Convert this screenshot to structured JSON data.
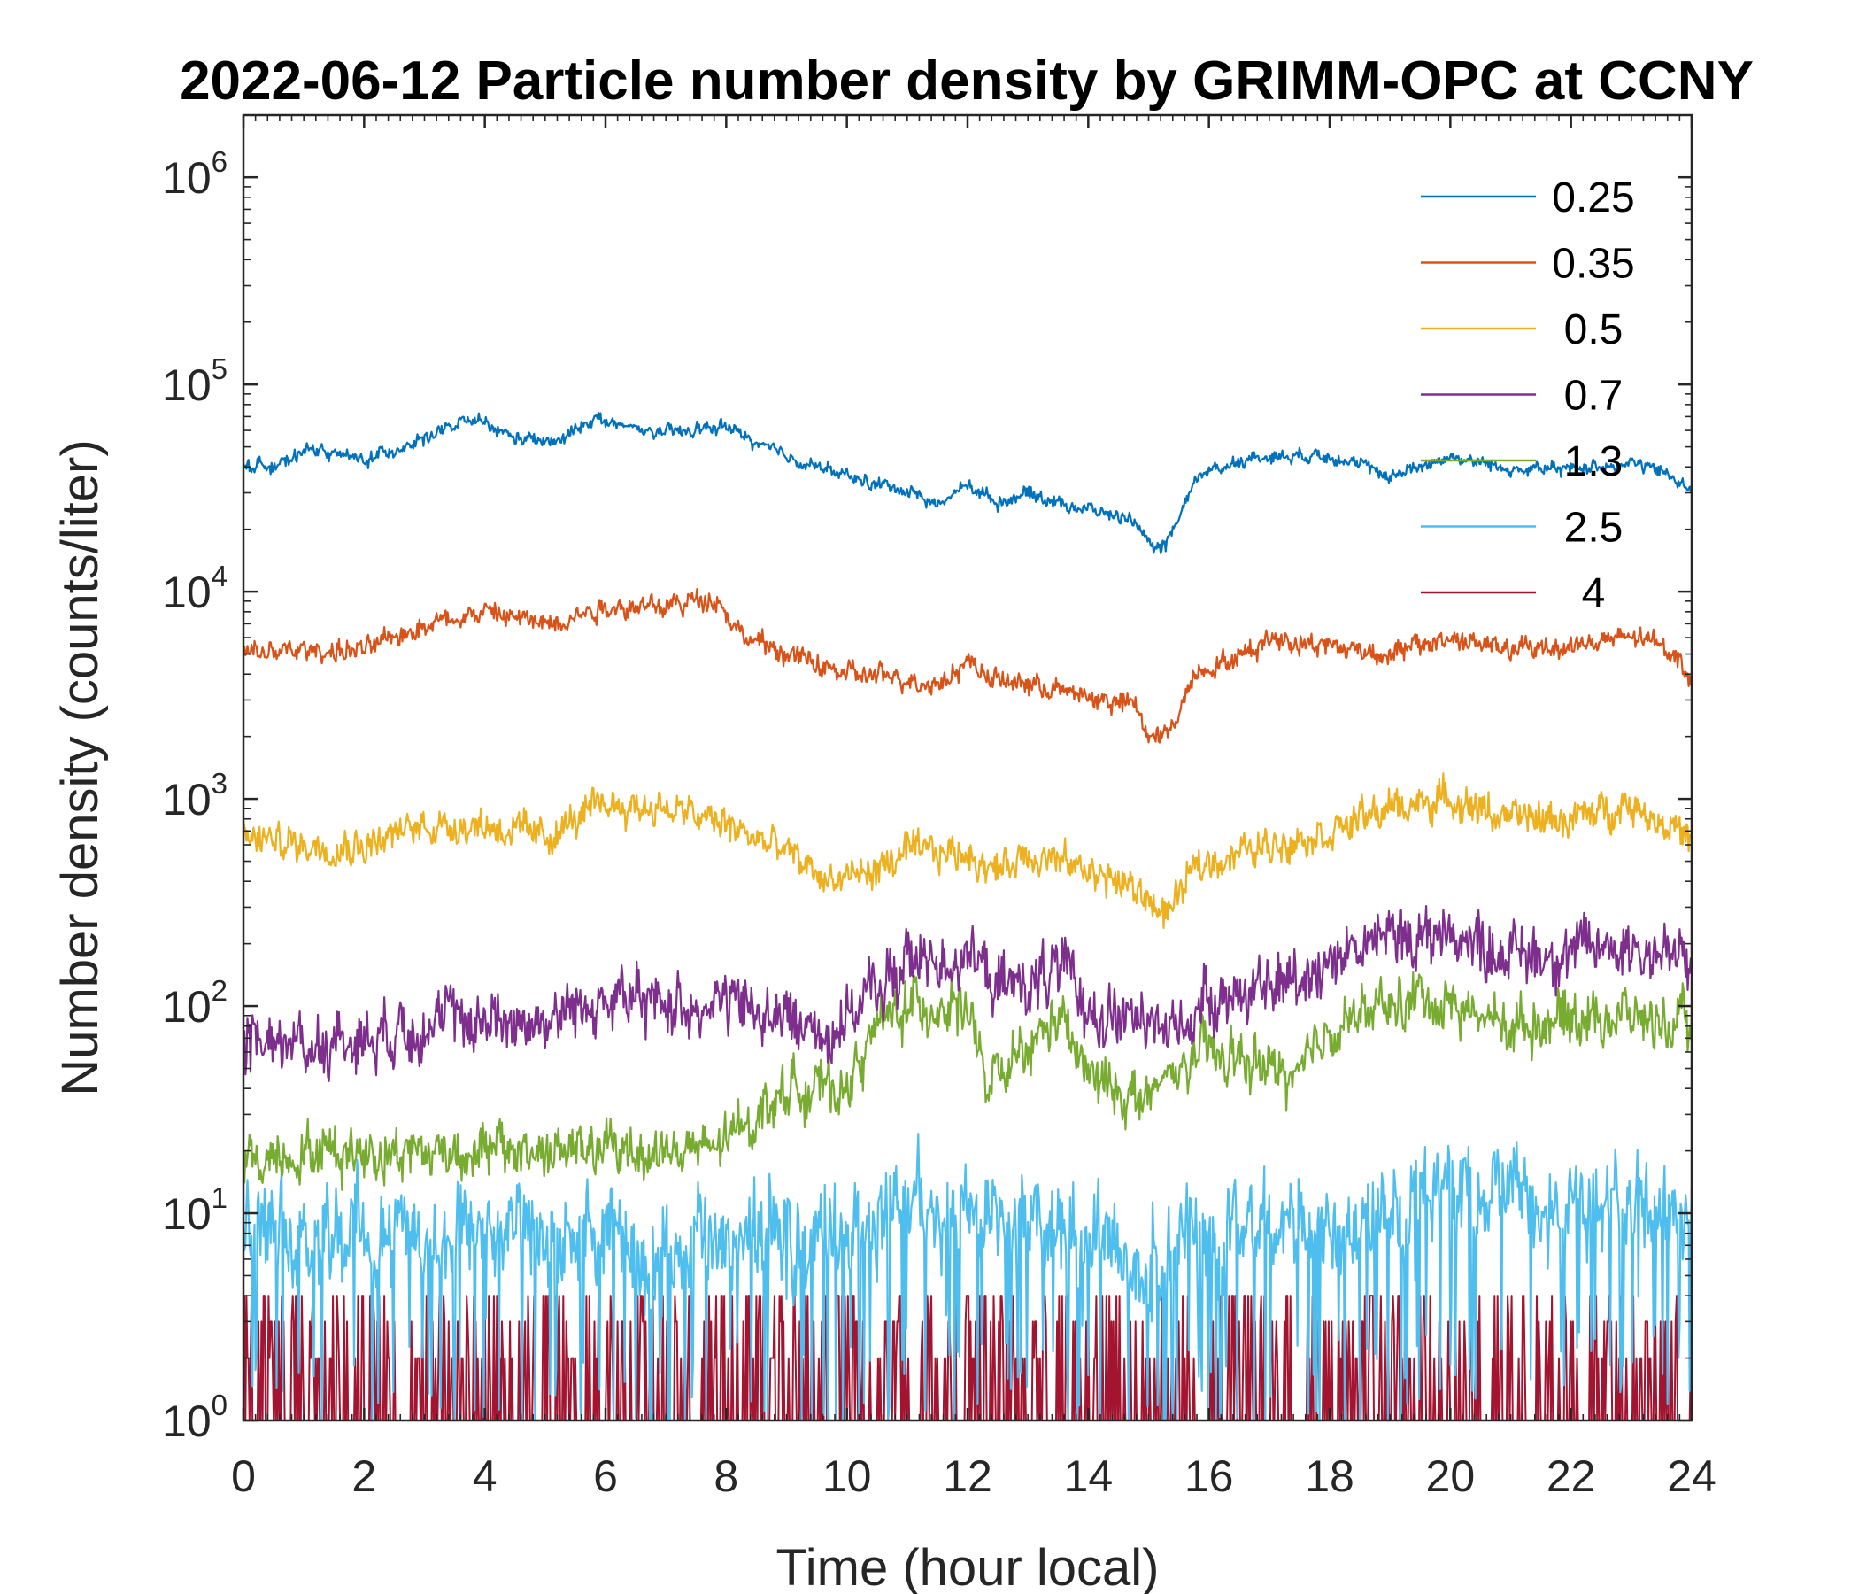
{
  "chart_data": {
    "type": "line",
    "title": "2022-06-12 Particle number density by GRIMM-OPC at CCNY",
    "xlabel": "Time (hour local)",
    "ylabel": "Number density (counts/liter)",
    "xlim": [
      0,
      24
    ],
    "ylim_log10": [
      0,
      6.3
    ],
    "xticks": [
      0,
      2,
      4,
      6,
      8,
      10,
      12,
      14,
      16,
      18,
      20,
      22,
      24
    ],
    "yticks": [
      {
        "base": "10",
        "exp": "0",
        "value": 1
      },
      {
        "base": "10",
        "exp": "1",
        "value": 10
      },
      {
        "base": "10",
        "exp": "2",
        "value": 100
      },
      {
        "base": "10",
        "exp": "3",
        "value": 1000
      },
      {
        "base": "10",
        "exp": "4",
        "value": 10000
      },
      {
        "base": "10",
        "exp": "5",
        "value": 100000
      },
      {
        "base": "10",
        "exp": "6",
        "value": 1000000
      }
    ],
    "legend_position": "top-right",
    "series": [
      {
        "name": "0.25",
        "color": "#0072BD",
        "x": [
          0,
          0.8,
          1,
          2,
          3,
          3.8,
          4.5,
          5.2,
          5.8,
          6.2,
          7,
          8,
          8.5,
          9,
          10,
          10.5,
          11,
          11.5,
          12,
          12.5,
          13,
          13.5,
          14,
          14.8,
          15,
          15.3,
          15.8,
          16.5,
          17,
          18,
          19,
          20,
          21,
          22,
          23,
          23.6,
          24
        ],
        "values": [
          40000,
          42000,
          50000,
          43000,
          55000,
          68000,
          55000,
          52000,
          70000,
          63000,
          58000,
          63000,
          52000,
          45000,
          36000,
          33000,
          31000,
          26000,
          33000,
          27000,
          30000,
          27000,
          25000,
          22000,
          16000,
          17000,
          36000,
          43000,
          45000,
          46000,
          36000,
          45000,
          39000,
          39000,
          42000,
          37000,
          31000
        ],
        "noise": 0.03
      },
      {
        "name": "0.35",
        "color": "#D95319",
        "x": [
          0,
          1,
          2,
          3,
          4,
          5,
          6,
          7,
          7.8,
          8.3,
          9,
          10,
          11,
          11.5,
          12,
          12.5,
          13,
          14,
          14.8,
          15,
          15.3,
          15.8,
          16.5,
          17,
          18,
          19,
          20,
          21,
          22,
          23,
          23.6,
          24
        ],
        "values": [
          5000,
          5200,
          5200,
          7000,
          8000,
          7000,
          8500,
          8500,
          9500,
          6000,
          5000,
          4000,
          3800,
          3600,
          4600,
          3700,
          3600,
          3100,
          2800,
          2000,
          2000,
          4200,
          4800,
          6000,
          5500,
          5000,
          6000,
          5200,
          5500,
          6000,
          5500,
          3800
        ],
        "noise": 0.05
      },
      {
        "name": "0.5",
        "color": "#EDB120",
        "x": [
          0,
          1,
          2,
          3,
          4,
          5,
          6,
          7,
          8,
          9,
          9.7,
          10.5,
          11,
          12,
          12.5,
          13,
          14,
          14.5,
          15,
          15.3,
          15.8,
          16.5,
          17,
          18,
          19,
          20,
          21,
          22,
          23,
          23.8,
          24
        ],
        "values": [
          650,
          600,
          600,
          750,
          750,
          650,
          950,
          900,
          750,
          550,
          400,
          450,
          550,
          550,
          450,
          550,
          450,
          400,
          330,
          270,
          480,
          550,
          600,
          700,
          900,
          1000,
          800,
          800,
          950,
          700,
          600
        ],
        "noise": 0.08
      },
      {
        "name": "0.7",
        "color": "#7E2F8E",
        "x": [
          0,
          1,
          2,
          3,
          4,
          5,
          6,
          7,
          8,
          9,
          9.7,
          10.5,
          11,
          12,
          12.5,
          13,
          13.5,
          14,
          15,
          15.5,
          16,
          17,
          18,
          19,
          20,
          21,
          22,
          23,
          24
        ],
        "values": [
          70,
          65,
          70,
          85,
          85,
          85,
          110,
          100,
          105,
          85,
          75,
          120,
          160,
          180,
          120,
          130,
          150,
          100,
          80,
          80,
          110,
          120,
          170,
          220,
          220,
          180,
          180,
          200,
          160
        ],
        "noise": 0.14
      },
      {
        "name": "1.3",
        "color": "#77AC30",
        "x": [
          0,
          1,
          2,
          3,
          4,
          5,
          6,
          7,
          7.8,
          8.5,
          9,
          10,
          10.5,
          11,
          12,
          12.3,
          13,
          13.5,
          14,
          15,
          15.5,
          16,
          17,
          17.5,
          18,
          19,
          19.5,
          20,
          21,
          22,
          23,
          24
        ],
        "values": [
          18,
          20,
          20,
          20,
          20,
          20,
          20,
          20,
          20,
          30,
          40,
          40,
          80,
          100,
          100,
          40,
          60,
          90,
          45,
          35,
          50,
          60,
          50,
          45,
          80,
          100,
          110,
          100,
          80,
          90,
          90,
          75
        ],
        "noise": 0.12
      },
      {
        "name": "2.5",
        "color": "#4DBEEE",
        "x": [
          0,
          2,
          4,
          6,
          8,
          10,
          11,
          12,
          14,
          15,
          16,
          18,
          20,
          22,
          24
        ],
        "values": [
          9,
          8,
          8,
          7,
          7,
          9,
          12,
          10,
          8,
          5,
          8,
          10,
          13,
          12,
          10
        ],
        "noise": 0.22
      },
      {
        "name": "4",
        "color": "#A2142F",
        "x": [
          0,
          6,
          10,
          12,
          14,
          18,
          22,
          24
        ],
        "values": [
          1.5,
          1.3,
          1.6,
          1.5,
          1.3,
          1.8,
          1.6,
          1.5
        ],
        "noise": 0.2
      }
    ]
  }
}
